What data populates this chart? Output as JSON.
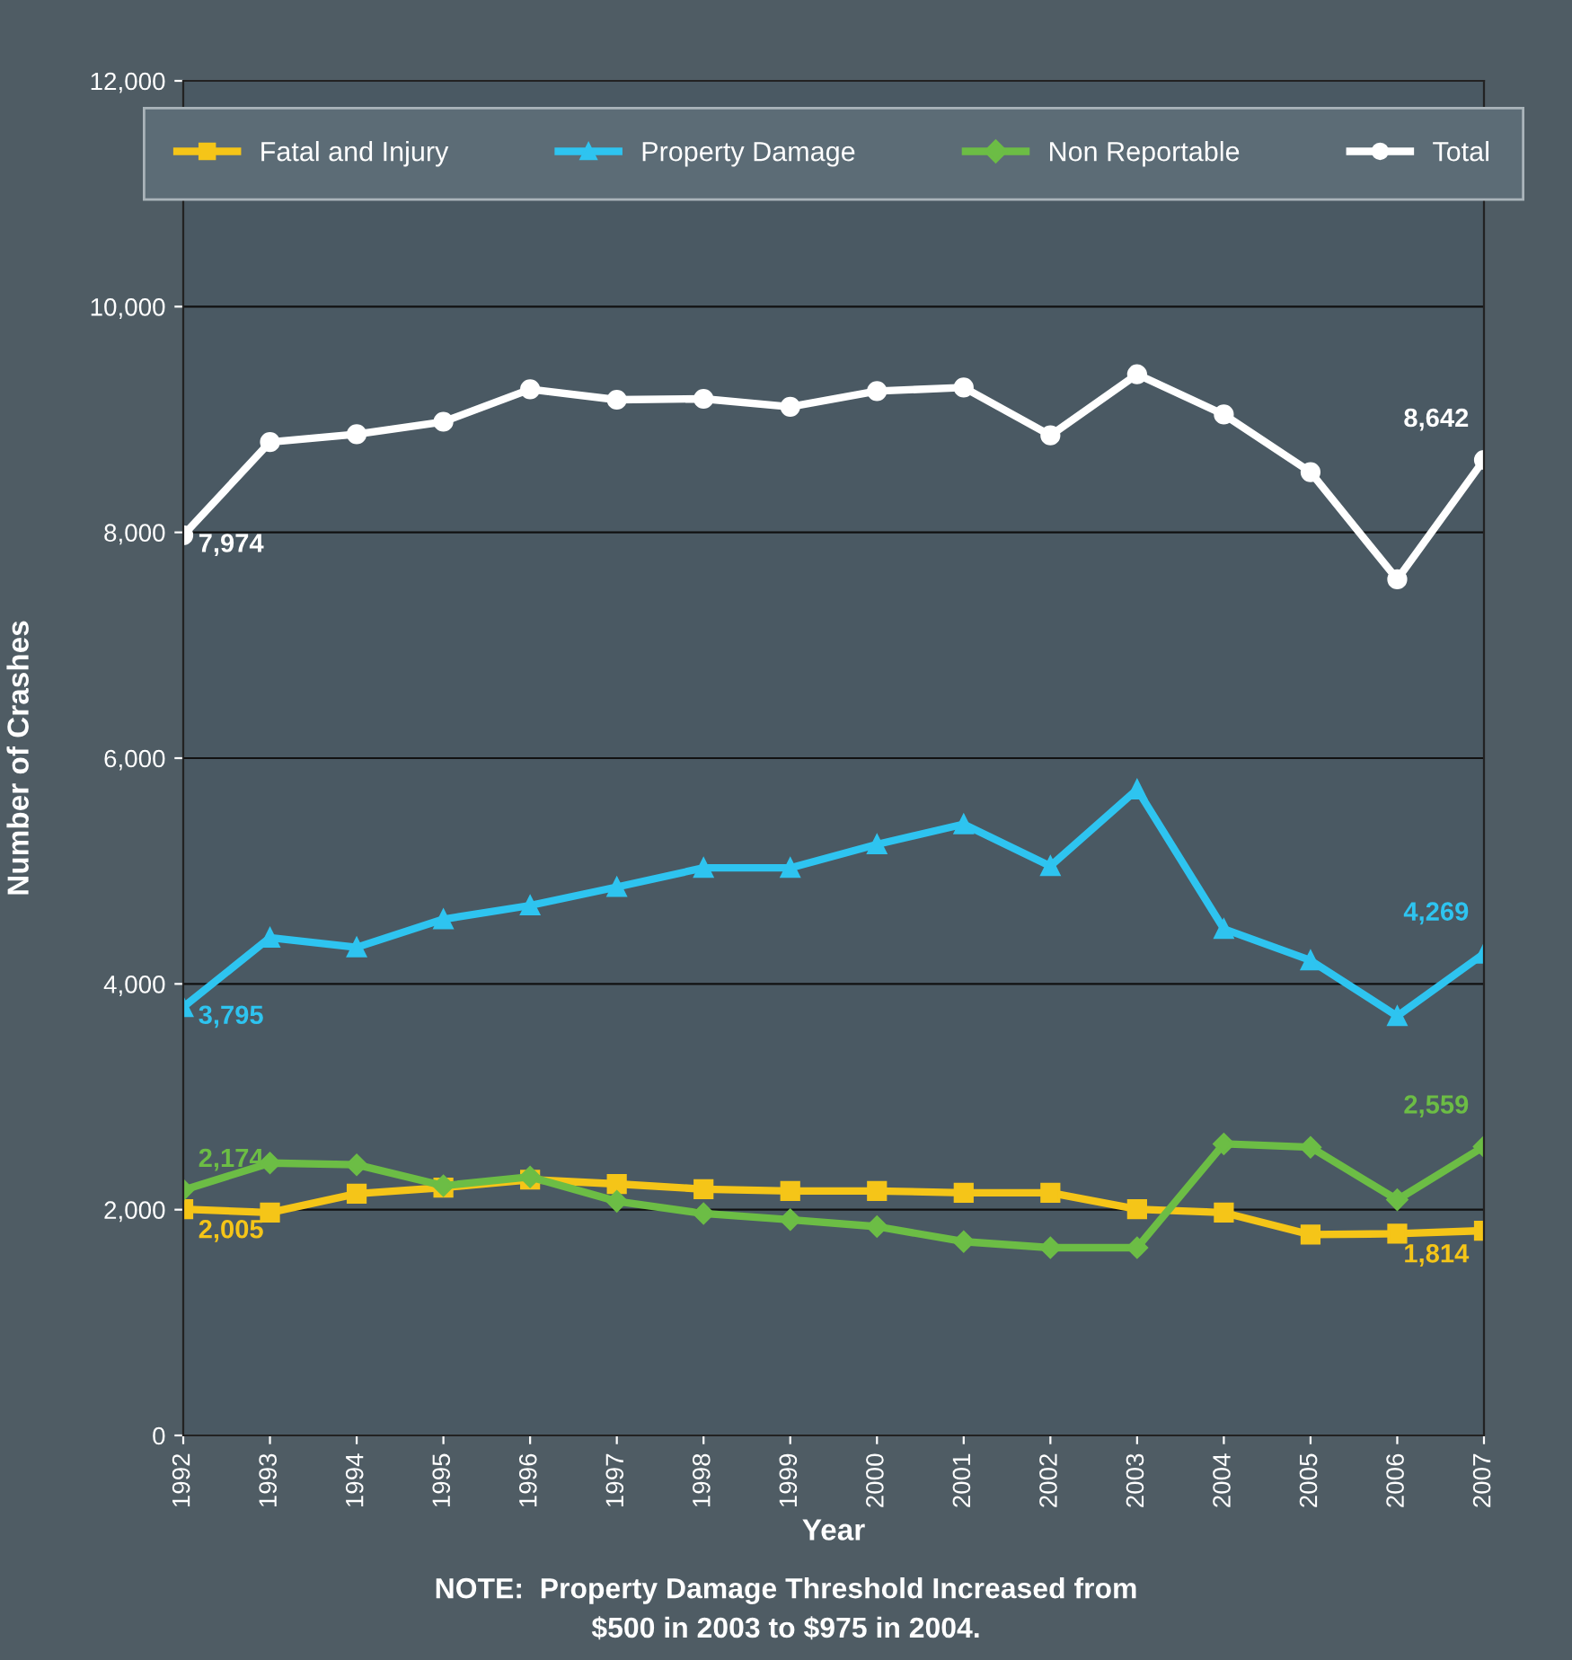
{
  "chart_data": {
    "type": "line",
    "xlabel": "Year",
    "ylabel": "Number of Crashes",
    "categories": [
      "1992",
      "1993",
      "1994",
      "1995",
      "1996",
      "1997",
      "1998",
      "1999",
      "2000",
      "2001",
      "2002",
      "2003",
      "2004",
      "2005",
      "2006",
      "2007"
    ],
    "series": [
      {
        "name": "Fatal and Injury",
        "color": "#f5c518",
        "marker": "square",
        "values": [
          2005,
          1974,
          2142,
          2196,
          2266,
          2228,
          2182,
          2166,
          2166,
          2150,
          2150,
          2004,
          1974,
          1779,
          1787,
          1814
        ],
        "value_labels": [
          "2,005",
          null,
          null,
          null,
          null,
          null,
          null,
          null,
          null,
          null,
          null,
          null,
          null,
          null,
          null,
          "1,814"
        ]
      },
      {
        "name": "Property Damage",
        "color": "#2ec4f0",
        "marker": "triangle",
        "values": [
          3795,
          4410,
          4324,
          4573,
          4695,
          4858,
          5028,
          5028,
          5236,
          5415,
          5044,
          5723,
          4487,
          4208,
          3715,
          4269
        ],
        "value_labels": [
          "3,795",
          null,
          null,
          null,
          null,
          null,
          null,
          null,
          null,
          null,
          null,
          null,
          null,
          null,
          null,
          "4,269"
        ]
      },
      {
        "name": "Non Reportable",
        "color": "#6cbd45",
        "marker": "diamond",
        "values": [
          2174,
          2413,
          2398,
          2212,
          2290,
          2074,
          1966,
          1911,
          1850,
          1717,
          1663,
          1663,
          2583,
          2553,
          2088,
          2559
        ],
        "value_labels": [
          "2,174",
          null,
          null,
          null,
          null,
          null,
          null,
          null,
          null,
          null,
          null,
          null,
          null,
          null,
          null,
          "2,559"
        ]
      },
      {
        "name": "Total",
        "color": "#ffffff",
        "marker": "circle",
        "values": [
          7974,
          8800,
          8870,
          8980,
          9268,
          9175,
          9183,
          9113,
          9252,
          9283,
          8859,
          9400,
          9044,
          8534,
          7584,
          8642
        ],
        "value_labels": [
          "7,974",
          null,
          null,
          null,
          null,
          null,
          null,
          null,
          null,
          null,
          null,
          null,
          null,
          null,
          null,
          "8,642"
        ]
      }
    ],
    "ylim": [
      0,
      12000
    ],
    "yticks": [
      0,
      {
        "value": 2000,
        "label": "2,000"
      },
      {
        "value": 4000,
        "label": "4,000"
      },
      {
        "value": 6000,
        "label": "6,000"
      },
      {
        "value": 8000,
        "label": "8,000"
      },
      {
        "value": 10000,
        "label": "10,000"
      },
      {
        "value": 12000,
        "label": "12,000"
      }
    ],
    "grid": "y",
    "legend": "top",
    "annotations": [
      "NOTE:  Property Damage Threshold Increased from\n$500 in 2003 to $975 in 2004."
    ]
  }
}
